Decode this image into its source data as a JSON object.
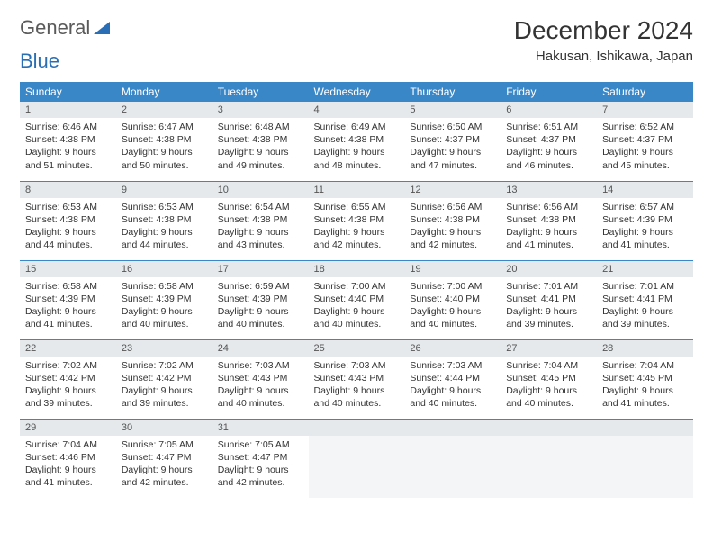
{
  "brand": {
    "text1": "General",
    "text2": "Blue"
  },
  "title": "December 2024",
  "location": "Hakusan, Ishikawa, Japan",
  "weekdays": [
    "Sunday",
    "Monday",
    "Tuesday",
    "Wednesday",
    "Thursday",
    "Friday",
    "Saturday"
  ],
  "colors": {
    "header_bg": "#3a87c8",
    "header_fg": "#ffffff",
    "daynum_bg": "#e5e9ec",
    "rule": "#3a87c8",
    "text": "#333333",
    "brand_gray": "#5a5a5a",
    "brand_blue": "#2a6fb5"
  },
  "weeks": [
    [
      {
        "n": "1",
        "sr": "Sunrise: 6:46 AM",
        "ss": "Sunset: 4:38 PM",
        "dl": "Daylight: 9 hours and 51 minutes."
      },
      {
        "n": "2",
        "sr": "Sunrise: 6:47 AM",
        "ss": "Sunset: 4:38 PM",
        "dl": "Daylight: 9 hours and 50 minutes."
      },
      {
        "n": "3",
        "sr": "Sunrise: 6:48 AM",
        "ss": "Sunset: 4:38 PM",
        "dl": "Daylight: 9 hours and 49 minutes."
      },
      {
        "n": "4",
        "sr": "Sunrise: 6:49 AM",
        "ss": "Sunset: 4:38 PM",
        "dl": "Daylight: 9 hours and 48 minutes."
      },
      {
        "n": "5",
        "sr": "Sunrise: 6:50 AM",
        "ss": "Sunset: 4:37 PM",
        "dl": "Daylight: 9 hours and 47 minutes."
      },
      {
        "n": "6",
        "sr": "Sunrise: 6:51 AM",
        "ss": "Sunset: 4:37 PM",
        "dl": "Daylight: 9 hours and 46 minutes."
      },
      {
        "n": "7",
        "sr": "Sunrise: 6:52 AM",
        "ss": "Sunset: 4:37 PM",
        "dl": "Daylight: 9 hours and 45 minutes."
      }
    ],
    [
      {
        "n": "8",
        "sr": "Sunrise: 6:53 AM",
        "ss": "Sunset: 4:38 PM",
        "dl": "Daylight: 9 hours and 44 minutes."
      },
      {
        "n": "9",
        "sr": "Sunrise: 6:53 AM",
        "ss": "Sunset: 4:38 PM",
        "dl": "Daylight: 9 hours and 44 minutes."
      },
      {
        "n": "10",
        "sr": "Sunrise: 6:54 AM",
        "ss": "Sunset: 4:38 PM",
        "dl": "Daylight: 9 hours and 43 minutes."
      },
      {
        "n": "11",
        "sr": "Sunrise: 6:55 AM",
        "ss": "Sunset: 4:38 PM",
        "dl": "Daylight: 9 hours and 42 minutes."
      },
      {
        "n": "12",
        "sr": "Sunrise: 6:56 AM",
        "ss": "Sunset: 4:38 PM",
        "dl": "Daylight: 9 hours and 42 minutes."
      },
      {
        "n": "13",
        "sr": "Sunrise: 6:56 AM",
        "ss": "Sunset: 4:38 PM",
        "dl": "Daylight: 9 hours and 41 minutes."
      },
      {
        "n": "14",
        "sr": "Sunrise: 6:57 AM",
        "ss": "Sunset: 4:39 PM",
        "dl": "Daylight: 9 hours and 41 minutes."
      }
    ],
    [
      {
        "n": "15",
        "sr": "Sunrise: 6:58 AM",
        "ss": "Sunset: 4:39 PM",
        "dl": "Daylight: 9 hours and 41 minutes."
      },
      {
        "n": "16",
        "sr": "Sunrise: 6:58 AM",
        "ss": "Sunset: 4:39 PM",
        "dl": "Daylight: 9 hours and 40 minutes."
      },
      {
        "n": "17",
        "sr": "Sunrise: 6:59 AM",
        "ss": "Sunset: 4:39 PM",
        "dl": "Daylight: 9 hours and 40 minutes."
      },
      {
        "n": "18",
        "sr": "Sunrise: 7:00 AM",
        "ss": "Sunset: 4:40 PM",
        "dl": "Daylight: 9 hours and 40 minutes."
      },
      {
        "n": "19",
        "sr": "Sunrise: 7:00 AM",
        "ss": "Sunset: 4:40 PM",
        "dl": "Daylight: 9 hours and 40 minutes."
      },
      {
        "n": "20",
        "sr": "Sunrise: 7:01 AM",
        "ss": "Sunset: 4:41 PM",
        "dl": "Daylight: 9 hours and 39 minutes."
      },
      {
        "n": "21",
        "sr": "Sunrise: 7:01 AM",
        "ss": "Sunset: 4:41 PM",
        "dl": "Daylight: 9 hours and 39 minutes."
      }
    ],
    [
      {
        "n": "22",
        "sr": "Sunrise: 7:02 AM",
        "ss": "Sunset: 4:42 PM",
        "dl": "Daylight: 9 hours and 39 minutes."
      },
      {
        "n": "23",
        "sr": "Sunrise: 7:02 AM",
        "ss": "Sunset: 4:42 PM",
        "dl": "Daylight: 9 hours and 39 minutes."
      },
      {
        "n": "24",
        "sr": "Sunrise: 7:03 AM",
        "ss": "Sunset: 4:43 PM",
        "dl": "Daylight: 9 hours and 40 minutes."
      },
      {
        "n": "25",
        "sr": "Sunrise: 7:03 AM",
        "ss": "Sunset: 4:43 PM",
        "dl": "Daylight: 9 hours and 40 minutes."
      },
      {
        "n": "26",
        "sr": "Sunrise: 7:03 AM",
        "ss": "Sunset: 4:44 PM",
        "dl": "Daylight: 9 hours and 40 minutes."
      },
      {
        "n": "27",
        "sr": "Sunrise: 7:04 AM",
        "ss": "Sunset: 4:45 PM",
        "dl": "Daylight: 9 hours and 40 minutes."
      },
      {
        "n": "28",
        "sr": "Sunrise: 7:04 AM",
        "ss": "Sunset: 4:45 PM",
        "dl": "Daylight: 9 hours and 41 minutes."
      }
    ],
    [
      {
        "n": "29",
        "sr": "Sunrise: 7:04 AM",
        "ss": "Sunset: 4:46 PM",
        "dl": "Daylight: 9 hours and 41 minutes."
      },
      {
        "n": "30",
        "sr": "Sunrise: 7:05 AM",
        "ss": "Sunset: 4:47 PM",
        "dl": "Daylight: 9 hours and 42 minutes."
      },
      {
        "n": "31",
        "sr": "Sunrise: 7:05 AM",
        "ss": "Sunset: 4:47 PM",
        "dl": "Daylight: 9 hours and 42 minutes."
      },
      {
        "empty": true
      },
      {
        "empty": true
      },
      {
        "empty": true
      },
      {
        "empty": true
      }
    ]
  ]
}
